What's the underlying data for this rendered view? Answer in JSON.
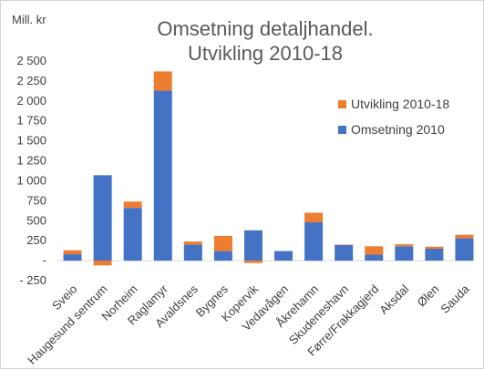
{
  "chart_data": {
    "type": "bar",
    "stacked": true,
    "title_line1": "Omsetning detaljhandel.",
    "title_line2": "Utvikling 2010-18",
    "unit_label": "Mill. kr",
    "ylim": [
      -250,
      2500
    ],
    "yticks": [
      -250,
      0,
      250,
      500,
      750,
      1000,
      1250,
      1500,
      1750,
      2000,
      2250,
      2500
    ],
    "ytick_labels": [
      "- 250",
      "-",
      "250",
      "500",
      "750",
      "1 000",
      "1 250",
      "1 500",
      "1 750",
      "2 000",
      "2 250",
      "2 500"
    ],
    "categories": [
      "Sveio",
      "Haugesund sentrum",
      "Norheim",
      "Raglamyr",
      "Avaldsnes",
      "Bygnes",
      "Kopervik",
      "Vedavågen",
      "Åkrehamn",
      "Skudeneshavn",
      "Førre/Frakkagjerd",
      "Aksdal",
      "Ølen",
      "Sauda"
    ],
    "series": [
      {
        "name": "Omsetning 2010",
        "color": "#4472c4",
        "values": [
          80,
          1070,
          660,
          2130,
          200,
          120,
          380,
          120,
          480,
          195,
          75,
          180,
          150,
          280
        ]
      },
      {
        "name": "Utvikling 2010-18",
        "color": "#ed7d31",
        "values": [
          50,
          -60,
          80,
          240,
          40,
          190,
          -30,
          0,
          120,
          5,
          105,
          25,
          25,
          45
        ]
      }
    ],
    "legend": {
      "position": "right",
      "order": [
        "Utvikling 2010-18",
        "Omsetning 2010"
      ]
    },
    "grid": false
  }
}
